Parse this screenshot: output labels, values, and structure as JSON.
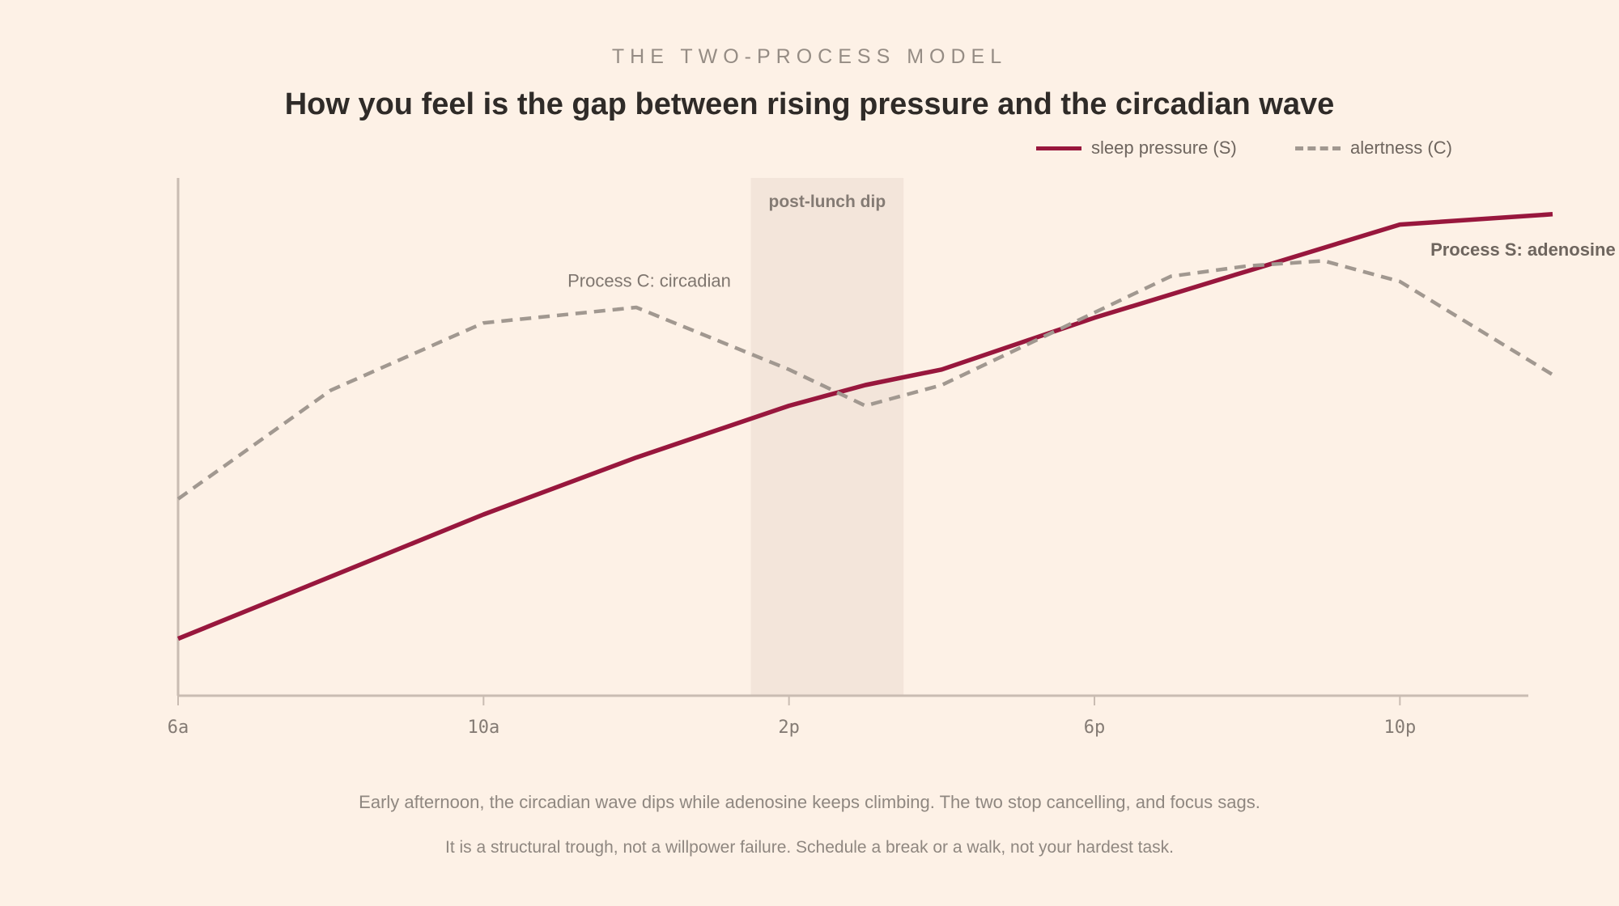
{
  "eyebrow": "THE TWO-PROCESS MODEL",
  "title": "How you feel is the gap between rising pressure and the circadian wave",
  "legend": {
    "s_label": "sleep pressure (S)",
    "c_label": "alertness (C)"
  },
  "colors": {
    "background": "#fdf1e6",
    "sleep_pressure": "#98173d",
    "alertness": "#a19890",
    "dip_band": "#f3e5da",
    "axis": "#c9bcb2"
  },
  "chart_data": {
    "type": "line",
    "xlabel": "",
    "ylabel": "",
    "x_ticks": [
      {
        "hour": 6,
        "label": "6a"
      },
      {
        "hour": 10,
        "label": "10a"
      },
      {
        "hour": 14,
        "label": "2p"
      },
      {
        "hour": 18,
        "label": "6p"
      },
      {
        "hour": 22,
        "label": "10p"
      }
    ],
    "xlim": [
      6,
      24
    ],
    "ylim": [
      0,
      100
    ],
    "grid": false,
    "legend_position": "top-right",
    "series": [
      {
        "name": "sleep pressure (S)",
        "style": "solid",
        "x": [
          6,
          8,
          10,
          12,
          14,
          15,
          16,
          18,
          20,
          22,
          24
        ],
        "y": [
          11,
          23,
          35,
          46,
          56,
          60,
          63,
          73,
          82,
          91,
          93
        ]
      },
      {
        "name": "alertness (C)",
        "style": "dashed",
        "x": [
          6,
          8,
          10,
          12,
          14,
          15,
          16,
          18,
          19,
          20,
          21,
          22,
          24
        ],
        "y": [
          38,
          59,
          72,
          75,
          63,
          56,
          60,
          74,
          81,
          83,
          84,
          80,
          62
        ]
      }
    ],
    "band": {
      "from": 13.5,
      "to": 15.5,
      "label": "post-lunch dip"
    },
    "annotations": [
      {
        "text": "Process C: circadian",
        "x": 11.1,
        "y": 79
      },
      {
        "text": "Process S: adenosine",
        "x": 22.4,
        "y": 85
      }
    ]
  },
  "footnotes": {
    "line1": "Early afternoon, the circadian wave dips while adenosine keeps climbing. The two stop cancelling, and focus sags.",
    "line2": "It is a structural trough, not a willpower failure. Schedule a break or a walk, not your hardest task."
  }
}
